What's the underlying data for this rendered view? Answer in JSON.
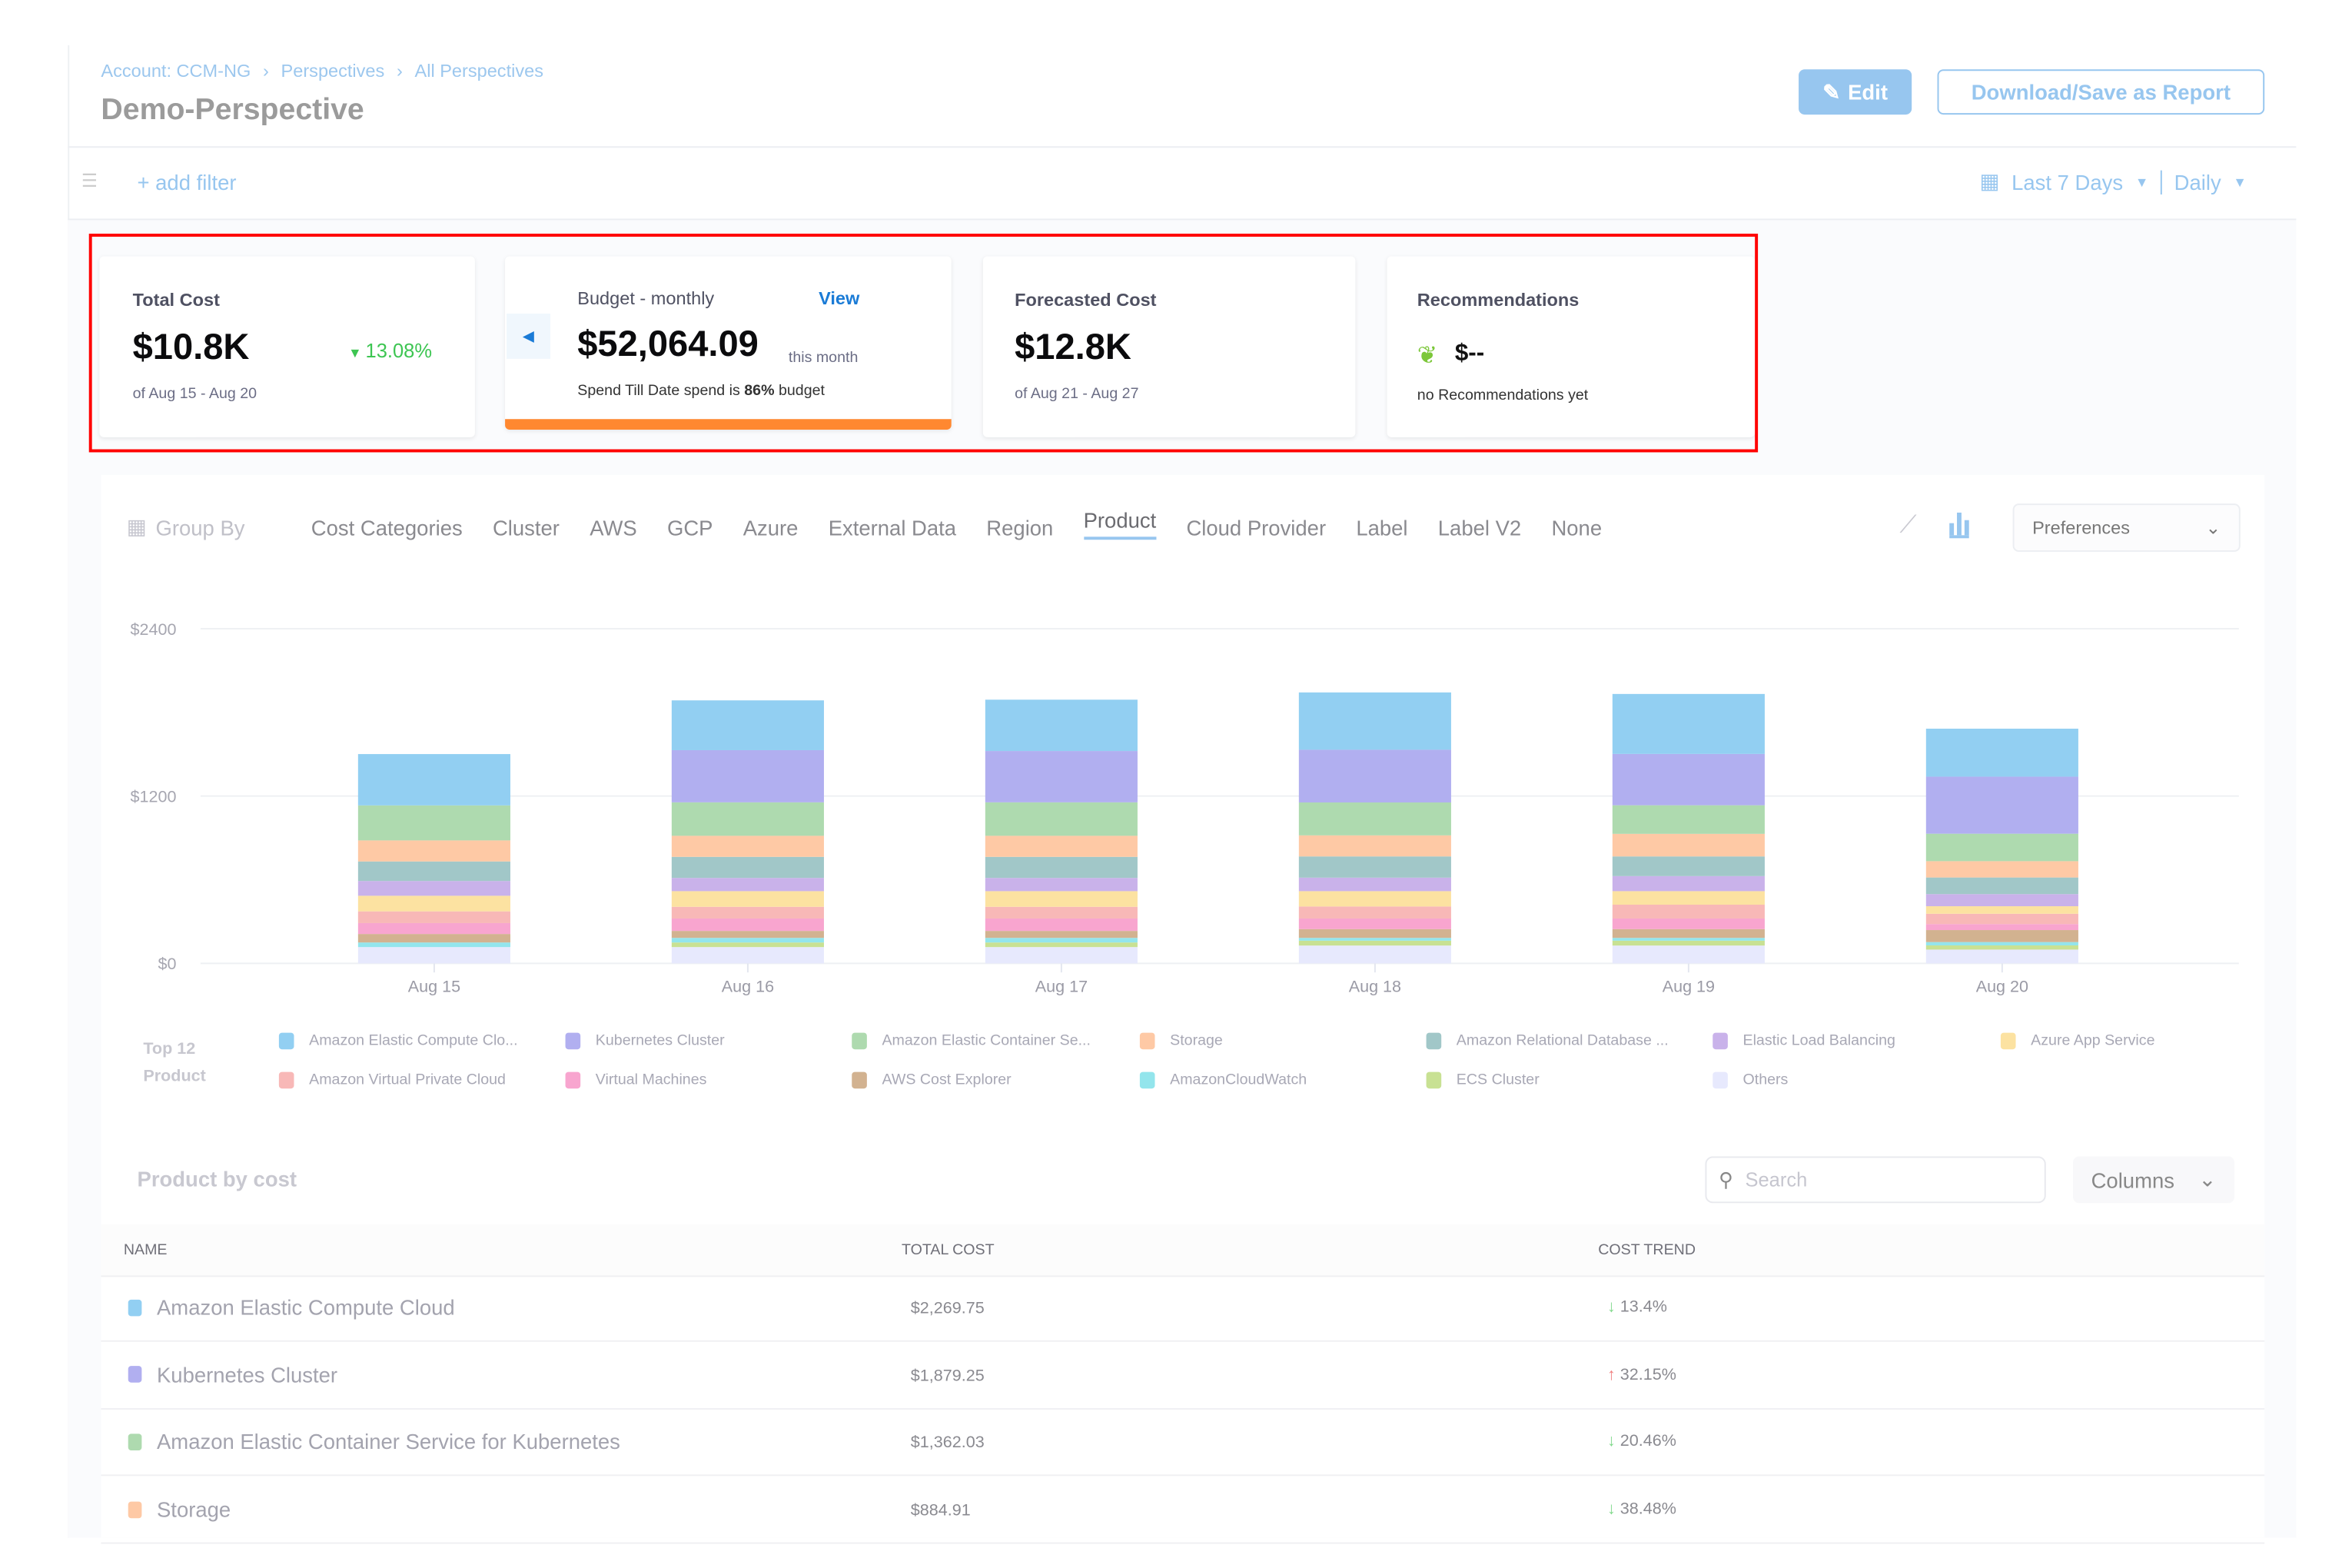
{
  "breadcrumb": [
    "Account: CCM-NG",
    "Perspectives",
    "All Perspectives"
  ],
  "page_title": "Demo-Perspective",
  "edit_label": "Edit",
  "download_label": "Download/Save as Report",
  "filter": {
    "add_label": "+ add filter",
    "range": "Last 7 Days",
    "granularity": "Daily"
  },
  "cards": {
    "total": {
      "title": "Total Cost",
      "value": "$10.8K",
      "change": "13.08%",
      "range": "of Aug 15 - Aug 20"
    },
    "budget": {
      "title": "Budget - monthly",
      "view": "View",
      "value": "$52,064.09",
      "suffix": "this month",
      "spend_prefix": "Spend Till Date spend is",
      "spend_pct": "86%",
      "spend_suffix": "budget",
      "progress": 0.86
    },
    "forecast": {
      "title": "Forecasted Cost",
      "value": "$12.8K",
      "range": "of Aug 21 - Aug 27"
    },
    "recs": {
      "title": "Recommendations",
      "value": "$--",
      "note": "no Recommendations yet"
    }
  },
  "group_by": {
    "label": "Group By",
    "options": [
      "Cost Categories",
      "Cluster",
      "AWS",
      "GCP",
      "Azure",
      "External Data",
      "Region",
      "Product",
      "Cloud Provider",
      "Label",
      "Label V2",
      "None"
    ],
    "active": "Product",
    "preferences": "Preferences"
  },
  "chart_data": {
    "type": "bar",
    "stacked": true,
    "categories": [
      "Aug 15",
      "Aug 16",
      "Aug 17",
      "Aug 18",
      "Aug 19",
      "Aug 20"
    ],
    "y_ticks": [
      "$0",
      "$1200",
      "$2400"
    ],
    "ylim": [
      0,
      2400
    ],
    "grid": true,
    "legend_title": "Top 12 Product",
    "legend_placement": "bottom",
    "series": [
      {
        "name": "Amazon Elastic Compute Clo...",
        "color": "#92cff2",
        "values": [
          368,
          357,
          368,
          411,
          430,
          344
        ]
      },
      {
        "name": "Kubernetes Cluster",
        "color": "#b1aff0",
        "values": [
          0,
          374,
          368,
          378,
          368,
          409
        ]
      },
      {
        "name": "Amazon Elastic Container Se...",
        "color": "#aedaaf",
        "values": [
          251,
          240,
          240,
          236,
          205,
          197
        ]
      },
      {
        "name": "Storage",
        "color": "#fec9a5",
        "values": [
          151,
          151,
          151,
          151,
          162,
          117
        ]
      },
      {
        "name": "Amazon Relational Database ...",
        "color": "#a1c7c8",
        "values": [
          140,
          151,
          151,
          152,
          141,
          119
        ]
      },
      {
        "name": "Elastic Load Balancing",
        "color": "#c9b2ea",
        "values": [
          106,
          95,
          95,
          97,
          108,
          87
        ]
      },
      {
        "name": "Azure App Service",
        "color": "#fce2a1",
        "values": [
          112,
          112,
          112,
          110,
          97,
          54
        ]
      },
      {
        "name": "Amazon Virtual Private Cloud",
        "color": "#f8b8b7",
        "values": [
          84,
          84,
          84,
          86,
          99,
          74
        ]
      },
      {
        "name": "Virtual Machines",
        "color": "#f8a5cf",
        "values": [
          78,
          89,
          89,
          76,
          76,
          43
        ]
      },
      {
        "name": "AWS Cost Explorer",
        "color": "#d2b290",
        "values": [
          61,
          50,
          50,
          63,
          63,
          86
        ]
      },
      {
        "name": "AmazonCloudWatch",
        "color": "#93e5ec",
        "values": [
          33,
          33,
          33,
          20,
          20,
          24
        ]
      },
      {
        "name": "ECS Cluster",
        "color": "#c8e193",
        "values": [
          0,
          33,
          33,
          35,
          35,
          30
        ]
      },
      {
        "name": "Others",
        "color": "#e7e9fd",
        "values": [
          117,
          117,
          117,
          128,
          128,
          99
        ]
      }
    ]
  },
  "table": {
    "title": "Product by cost",
    "search_placeholder": "Search",
    "columns_label": "Columns",
    "headers": [
      "NAME",
      "TOTAL COST",
      "COST TREND"
    ],
    "rows": [
      {
        "name": "Amazon Elastic Compute Cloud",
        "color": "#92cff2",
        "cost": "$2,269.75",
        "trend": "13.4%",
        "dir": "down"
      },
      {
        "name": "Kubernetes Cluster",
        "color": "#b1aff0",
        "cost": "$1,879.25",
        "trend": "32.15%",
        "dir": "up"
      },
      {
        "name": "Amazon Elastic Container Service for Kubernetes",
        "color": "#aedaaf",
        "cost": "$1,362.03",
        "trend": "20.46%",
        "dir": "down"
      },
      {
        "name": "Storage",
        "color": "#fec9a5",
        "cost": "$884.91",
        "trend": "38.48%",
        "dir": "down"
      }
    ]
  }
}
